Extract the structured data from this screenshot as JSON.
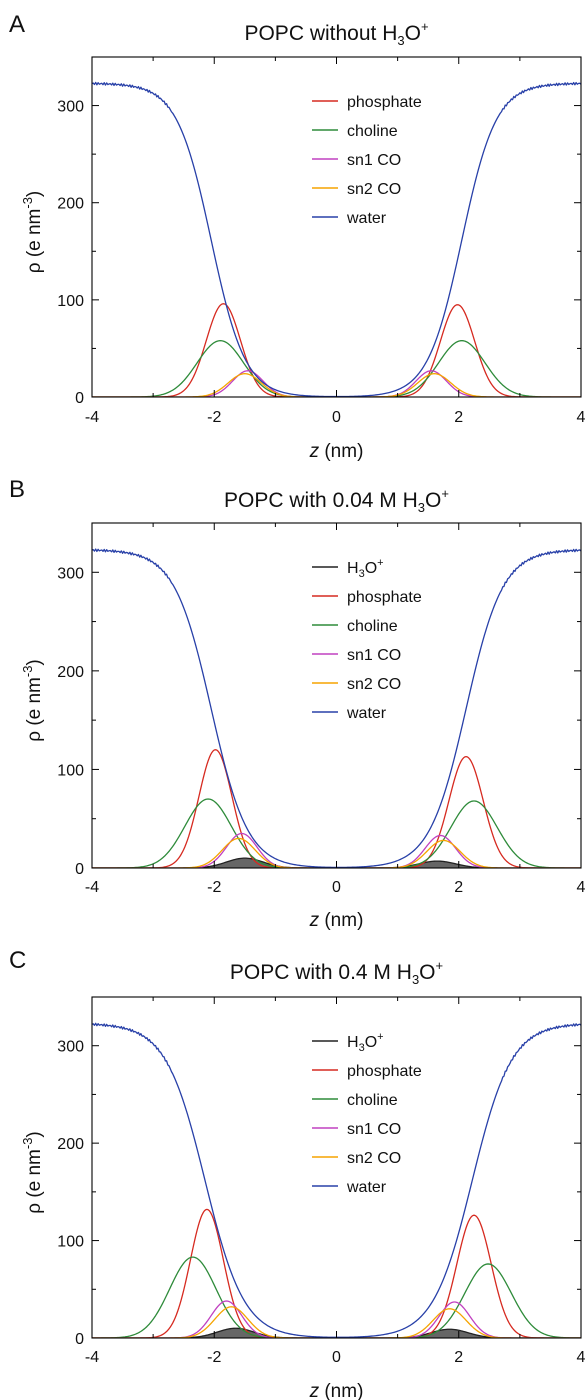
{
  "species_colors": {
    "h3o": "#222222",
    "phosphate": "#d62a20",
    "choline": "#2e8b3a",
    "sn1": "#c040c0",
    "sn2": "#f5a400",
    "water": "#2840a8",
    "h3o_fill": "#666666"
  },
  "chart_data": [
    {
      "type": "line",
      "panel_label": "A",
      "title": "POPC without H",
      "title_sub": "3",
      "title_rest": "O",
      "title_sup": "+",
      "xlabel_italic": "z",
      "xlabel_rest": " (nm)",
      "ylabel": "ρ (e nm",
      "ylabel_sup": "-3",
      "ylabel_close": ")",
      "xlim": [
        -4,
        4
      ],
      "ylim": [
        0,
        350
      ],
      "xticks": [
        -4,
        -2,
        0,
        2,
        4
      ],
      "yticks": [
        0,
        100,
        200,
        300
      ],
      "legend_position": "upper-center",
      "series": [
        {
          "key": "phosphate",
          "name": "phosphate",
          "kind": "gauss2",
          "left": {
            "c": -1.85,
            "a": 96,
            "w": 0.28
          },
          "right": {
            "c": 1.98,
            "a": 95,
            "w": 0.28
          }
        },
        {
          "key": "choline",
          "name": "choline",
          "kind": "gauss2",
          "left": {
            "c": -1.9,
            "a": 58,
            "w": 0.38
          },
          "right": {
            "c": 2.05,
            "a": 58,
            "w": 0.38
          }
        },
        {
          "key": "sn1",
          "name": "sn1 CO",
          "kind": "gauss2",
          "left": {
            "c": -1.45,
            "a": 27,
            "w": 0.25
          },
          "right": {
            "c": 1.55,
            "a": 27,
            "w": 0.25
          }
        },
        {
          "key": "sn2",
          "name": "sn2 CO",
          "kind": "gauss2",
          "left": {
            "c": -1.5,
            "a": 24,
            "w": 0.27
          },
          "right": {
            "c": 1.6,
            "a": 24,
            "w": 0.27
          }
        },
        {
          "key": "water",
          "name": "water",
          "kind": "water",
          "plateau": 323,
          "left": {
            "m": -2.05,
            "s": 0.28
          },
          "right": {
            "m": 2.05,
            "s": 0.28
          }
        }
      ]
    },
    {
      "type": "line",
      "panel_label": "B",
      "title": "POPC with 0.04 M H",
      "title_sub": "3",
      "title_rest": "O",
      "title_sup": "+",
      "xlabel_italic": "z",
      "xlabel_rest": " (nm)",
      "ylabel": "ρ (e nm",
      "ylabel_sup": "-3",
      "ylabel_close": ")",
      "xlim": [
        -4,
        4
      ],
      "ylim": [
        0,
        350
      ],
      "xticks": [
        -4,
        -2,
        0,
        2,
        4
      ],
      "yticks": [
        0,
        100,
        200,
        300
      ],
      "legend_position": "upper-center",
      "series": [
        {
          "key": "h3o",
          "name": "H",
          "name_sub": "3",
          "name_rest": "O",
          "name_sup": "+",
          "kind": "gauss2",
          "filled": true,
          "left": {
            "c": -1.5,
            "a": 10,
            "w": 0.3
          },
          "right": {
            "c": 1.65,
            "a": 7,
            "w": 0.3
          }
        },
        {
          "key": "phosphate",
          "name": "phosphate",
          "kind": "gauss2",
          "left": {
            "c": -1.98,
            "a": 120,
            "w": 0.27
          },
          "right": {
            "c": 2.12,
            "a": 113,
            "w": 0.28
          }
        },
        {
          "key": "choline",
          "name": "choline",
          "kind": "gauss2",
          "left": {
            "c": -2.1,
            "a": 70,
            "w": 0.38
          },
          "right": {
            "c": 2.25,
            "a": 68,
            "w": 0.38
          }
        },
        {
          "key": "sn1",
          "name": "sn1 CO",
          "kind": "gauss2",
          "left": {
            "c": -1.55,
            "a": 35,
            "w": 0.25
          },
          "right": {
            "c": 1.7,
            "a": 33,
            "w": 0.25
          }
        },
        {
          "key": "sn2",
          "name": "sn2 CO",
          "kind": "gauss2",
          "left": {
            "c": -1.6,
            "a": 30,
            "w": 0.27
          },
          "right": {
            "c": 1.75,
            "a": 28,
            "w": 0.27
          }
        },
        {
          "key": "water",
          "name": "water",
          "kind": "water",
          "plateau": 323,
          "left": {
            "m": -2.05,
            "s": 0.3
          },
          "right": {
            "m": 2.12,
            "s": 0.3
          }
        }
      ]
    },
    {
      "type": "line",
      "panel_label": "C",
      "title": "POPC with 0.4 M H",
      "title_sub": "3",
      "title_rest": "O",
      "title_sup": "+",
      "xlabel_italic": "z",
      "xlabel_rest": " (nm)",
      "ylabel": "ρ (e nm",
      "ylabel_sup": "-3",
      "ylabel_close": ")",
      "xlim": [
        -4,
        4
      ],
      "ylim": [
        0,
        350
      ],
      "xticks": [
        -4,
        -2,
        0,
        2,
        4
      ],
      "yticks": [
        0,
        100,
        200,
        300
      ],
      "legend_position": "upper-center",
      "series": [
        {
          "key": "h3o",
          "name": "H",
          "name_sub": "3",
          "name_rest": "O",
          "name_sup": "+",
          "kind": "gauss2",
          "filled": true,
          "left": {
            "c": -1.65,
            "a": 10,
            "w": 0.3
          },
          "right": {
            "c": 1.85,
            "a": 9,
            "w": 0.3
          }
        },
        {
          "key": "phosphate",
          "name": "phosphate",
          "kind": "gauss2",
          "left": {
            "c": -2.12,
            "a": 132,
            "w": 0.27
          },
          "right": {
            "c": 2.25,
            "a": 126,
            "w": 0.28
          }
        },
        {
          "key": "choline",
          "name": "choline",
          "kind": "gauss2",
          "left": {
            "c": -2.35,
            "a": 83,
            "w": 0.38
          },
          "right": {
            "c": 2.48,
            "a": 76,
            "w": 0.38
          }
        },
        {
          "key": "sn1",
          "name": "sn1 CO",
          "kind": "gauss2",
          "left": {
            "c": -1.8,
            "a": 38,
            "w": 0.25
          },
          "right": {
            "c": 1.93,
            "a": 37,
            "w": 0.25
          }
        },
        {
          "key": "sn2",
          "name": "sn2 CO",
          "kind": "gauss2",
          "left": {
            "c": -1.72,
            "a": 32,
            "w": 0.27
          },
          "right": {
            "c": 1.85,
            "a": 30,
            "w": 0.27
          }
        },
        {
          "key": "water",
          "name": "water",
          "kind": "water",
          "plateau": 323,
          "left": {
            "m": -2.15,
            "s": 0.32
          },
          "right": {
            "m": 2.22,
            "s": 0.32
          }
        }
      ]
    }
  ]
}
